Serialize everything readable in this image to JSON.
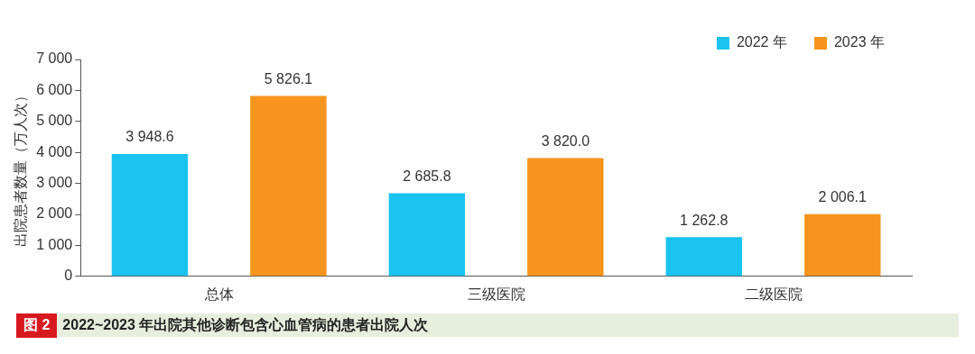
{
  "chart_data": {
    "type": "bar",
    "title": "2022~2023 年出院其他诊断包含心血管病的患者出院人次",
    "annotations": [
      "图 2"
    ],
    "ylabel": "出院患者数量（万人次）",
    "categories": [
      "总体",
      "三级医院",
      "二级医院"
    ],
    "series": [
      {
        "name": "2022 年",
        "color": "#1ac3f0",
        "values": [
          3948.6,
          2685.8,
          1262.8
        ],
        "value_labels": [
          "3 948.6",
          "2 685.8",
          "1 262.8"
        ]
      },
      {
        "name": "2023 年",
        "color": "#f7941d",
        "values": [
          5826.1,
          3820.0,
          2006.1
        ],
        "value_labels": [
          "5 826.1",
          "3 820.0",
          "2 006.1"
        ]
      }
    ],
    "ylim": [
      0,
      7000
    ],
    "yticks": [
      0,
      {
        "value": 1000,
        "label": "1 000"
      },
      {
        "value": 2000,
        "label": "2 000"
      },
      {
        "value": 3000,
        "label": "3 000"
      },
      {
        "value": 4000,
        "label": "4 000"
      },
      {
        "value": 5000,
        "label": "5 000"
      },
      {
        "value": 6000,
        "label": "6 000"
      },
      {
        "value": 7000,
        "label": "7 000"
      }
    ],
    "grid": false,
    "legend": "top right"
  }
}
